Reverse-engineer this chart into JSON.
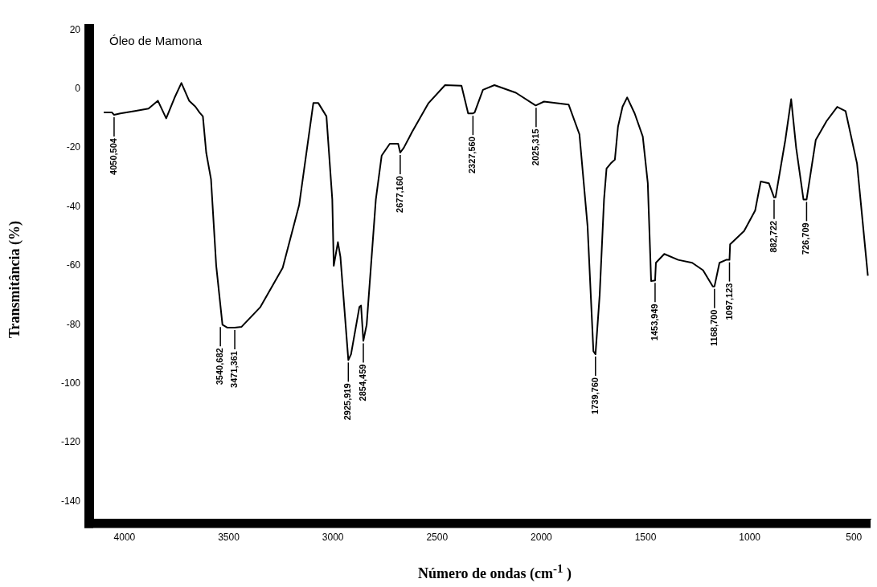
{
  "chart_data": {
    "type": "line",
    "title": "Óleo de Mamona",
    "xlabel": "Número de ondas (cm$^{-1}$ )",
    "ylabel": "Transmitância (%)",
    "xlim": [
      4150,
      420
    ],
    "ylim": [
      -146,
      22
    ],
    "xticks": [
      4000,
      3500,
      3000,
      2500,
      2000,
      1500,
      1000,
      500
    ],
    "yticks": [
      20,
      0,
      -20,
      -40,
      -60,
      -80,
      -100,
      -120,
      -140
    ],
    "grid": false,
    "legend": false,
    "marker": "none",
    "line_style": "solid",
    "series": [
      {
        "color": "#000000",
        "x": [
          4100,
          4060,
          4050,
          4020,
          3950,
          3885,
          3840,
          3800,
          3760,
          3727,
          3690,
          3660,
          3640,
          3624,
          3608,
          3585,
          3560,
          3530,
          3506,
          3471,
          3438,
          3348,
          3241,
          3162,
          3094,
          3070,
          3031,
          3003,
          2996,
          2976,
          2964,
          2926,
          2913,
          2873,
          2865,
          2854,
          2838,
          2794,
          2766,
          2727,
          2687,
          2677,
          2660,
          2620,
          2541,
          2462,
          2383,
          2351,
          2328,
          2320,
          2280,
          2225,
          2122,
          2027,
          2025,
          1987,
          1869,
          1817,
          1778,
          1750,
          1740,
          1720,
          1699,
          1687,
          1667,
          1647,
          1632,
          1610,
          1588,
          1552,
          1513,
          1489,
          1473,
          1454,
          1450,
          1410,
          1343,
          1276,
          1224,
          1177,
          1169,
          1145,
          1113,
          1097,
          1094,
          1027,
          974,
          947,
          908,
          883,
          876,
          829,
          801,
          777,
          742,
          727,
          683,
          631,
          580,
          540,
          485,
          433
        ],
        "values": [
          -8,
          -8,
          -8.8,
          -8.3,
          -7.5,
          -6.7,
          -4,
          -10,
          -3,
          2,
          -4,
          -6,
          -8,
          -9.3,
          -21.6,
          -30.6,
          -60,
          -80,
          -81,
          -81,
          -80.7,
          -74,
          -60.7,
          -39.4,
          -4.8,
          -4.8,
          -9.3,
          -37.5,
          -60,
          -52,
          -57,
          -92,
          -90,
          -74,
          -73.5,
          -85.5,
          -80,
          -37.5,
          -22.6,
          -18.6,
          -18.6,
          -21.6,
          -20,
          -14.6,
          -4.8,
          1.3,
          1.1,
          -8.3,
          -8.3,
          -8,
          -0.3,
          1.3,
          -1.3,
          -5.6,
          -5.6,
          -4.3,
          -5.3,
          -15.4,
          -46.6,
          -89,
          -90,
          -70,
          -37.5,
          -27,
          -25.3,
          -24,
          -12.8,
          -6,
          -2.9,
          -8.3,
          -16.2,
          -32,
          -65.2,
          -65,
          -59,
          -56,
          -58,
          -59,
          -61.5,
          -67,
          -67,
          -59,
          -58,
          -58,
          -52.7,
          -48.2,
          -41.3,
          -31.4,
          -32,
          -36.8,
          -36.8,
          -17.3,
          -3.5,
          -20,
          -37.5,
          -37.5,
          -17.3,
          -10.9,
          -6.1,
          -7.5,
          -25.3,
          -63.4
        ]
      }
    ],
    "annotations": [
      {
        "text": "4050,504",
        "x": 4050,
        "y": -8.8
      },
      {
        "text": "3540,682",
        "x": 3540,
        "y": -80
      },
      {
        "text": "3471,361",
        "x": 3471,
        "y": -81
      },
      {
        "text": "2925,919",
        "x": 2926,
        "y": -92
      },
      {
        "text": "2854,459",
        "x": 2854,
        "y": -85.5
      },
      {
        "text": "2677,160",
        "x": 2677,
        "y": -21.6
      },
      {
        "text": "2327,560",
        "x": 2328,
        "y": -8.3
      },
      {
        "text": "2025,315",
        "x": 2025,
        "y": -5.6
      },
      {
        "text": "1739,760",
        "x": 1740,
        "y": -90
      },
      {
        "text": "1453,949",
        "x": 1454,
        "y": -65
      },
      {
        "text": "1168,700",
        "x": 1169,
        "y": -67
      },
      {
        "text": "1097,123",
        "x": 1097,
        "y": -58
      },
      {
        "text": "882,722",
        "x": 883,
        "y": -36.8
      },
      {
        "text": "726,709",
        "x": 727,
        "y": -37.5
      }
    ]
  }
}
